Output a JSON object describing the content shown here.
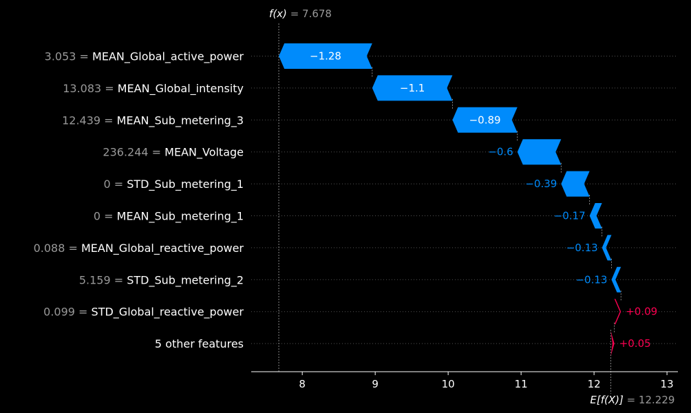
{
  "chart_data": {
    "type": "waterfall",
    "fx_label": "f(x)",
    "fx_value": "7.678",
    "efx_label": "E[f(X)]",
    "efx_value": "12.229",
    "base_value": 12.229,
    "final_value": 7.678,
    "xlim": [
      7.3,
      13.15
    ],
    "xticks": [
      8,
      9,
      10,
      11,
      12,
      13
    ],
    "features": [
      {
        "value": "3.053",
        "name": "MEAN_Global_active_power",
        "shap": -1.28,
        "label": "−1.28"
      },
      {
        "value": "13.083",
        "name": "MEAN_Global_intensity",
        "shap": -1.1,
        "label": "−1.1"
      },
      {
        "value": "12.439",
        "name": "MEAN_Sub_metering_3",
        "shap": -0.89,
        "label": "−0.89"
      },
      {
        "value": "236.244",
        "name": "MEAN_Voltage",
        "shap": -0.6,
        "label": "−0.6"
      },
      {
        "value": "0",
        "name": "STD_Sub_metering_1",
        "shap": -0.39,
        "label": "−0.39"
      },
      {
        "value": "0",
        "name": "MEAN_Sub_metering_1",
        "shap": -0.17,
        "label": "−0.17"
      },
      {
        "value": "0.088",
        "name": "MEAN_Global_reactive_power",
        "shap": -0.13,
        "label": "−0.13"
      },
      {
        "value": "5.159",
        "name": "STD_Sub_metering_2",
        "shap": -0.13,
        "label": "−0.13"
      },
      {
        "value": "0.099",
        "name": "STD_Global_reactive_power",
        "shap": 0.09,
        "label": "+0.09"
      },
      {
        "value": "",
        "name": "5 other features",
        "shap": 0.05,
        "label": "+0.05"
      }
    ],
    "colors": {
      "negative": "#008bfb",
      "positive": "#ff0051",
      "text": "#ffffff",
      "muted": "#999999",
      "grid": "#555555"
    }
  }
}
